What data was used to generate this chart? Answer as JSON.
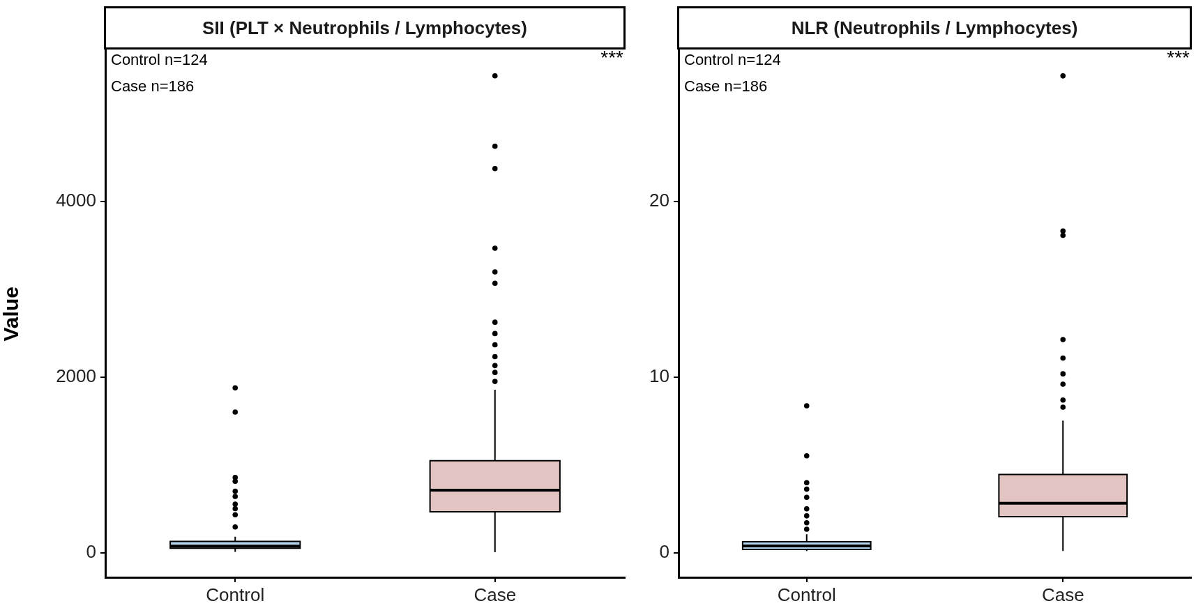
{
  "chart_data": [
    {
      "type": "box",
      "title": "SII (PLT × Neutrophils / Lymphocytes)",
      "ylabel": "Value",
      "categories": [
        "Control",
        "Case"
      ],
      "colors": [
        "#b5d3ea",
        "#e2c5c2"
      ],
      "boxes": [
        {
          "low": 10,
          "q1": 52,
          "median": 75,
          "q3": 130,
          "high": 182,
          "outliers": [
            1879,
            1602,
            857,
            814,
            701,
            641,
            554,
            502,
            433,
            294
          ]
        },
        {
          "low": 5,
          "q1": 467,
          "median": 713,
          "q3": 1048,
          "high": 1856,
          "outliers": [
            5433,
            4631,
            4377,
            3469,
            3199,
            3070,
            2626,
            2497,
            2369,
            2234,
            2132,
            2054,
            1951
          ]
        }
      ],
      "ylim": [
        -280,
        5720
      ],
      "yticks": [
        0,
        2000,
        4000
      ],
      "grid": false,
      "legend": false,
      "annotations": [
        "Control n=124",
        "Case n=186",
        "***"
      ]
    },
    {
      "type": "box",
      "title": "NLR (Neutrophils / Lymphocytes)",
      "categories": [
        "Control",
        "Case"
      ],
      "colors": [
        "#b5d3ea",
        "#e2c5c2"
      ],
      "boxes": [
        {
          "low": 0.1,
          "q1": 0.19,
          "median": 0.39,
          "q3": 0.63,
          "high": 1.05,
          "outliers": [
            8.37,
            5.52,
            3.99,
            3.62,
            3.16,
            2.5,
            2.1,
            1.71,
            1.34
          ]
        },
        {
          "low": 0.1,
          "q1": 2.06,
          "median": 2.82,
          "q3": 4.46,
          "high": 7.53,
          "outliers": [
            27.16,
            18.33,
            18.08,
            12.14,
            11.09,
            10.19,
            9.6,
            8.7,
            8.29
          ]
        }
      ],
      "ylim": [
        -1.4,
        28.6
      ],
      "yticks": [
        0,
        10,
        20
      ],
      "grid": false,
      "legend": false,
      "annotations": [
        "Control n=124",
        "Case n=186",
        "***"
      ]
    }
  ]
}
